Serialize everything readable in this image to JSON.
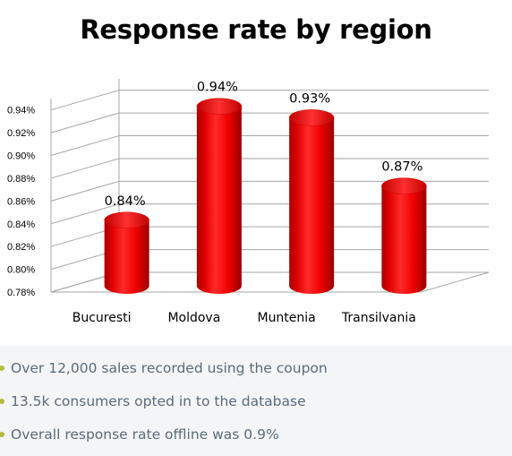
{
  "chart_data": {
    "type": "bar",
    "title": "Response rate by region",
    "categories": [
      "Bucuresti",
      "Moldova",
      "Muntenia",
      "Transilvania"
    ],
    "values": [
      0.84,
      0.94,
      0.93,
      0.87
    ],
    "data_labels": [
      "0.84%",
      "0.94%",
      "0.93%",
      "0.87%"
    ],
    "yticks": [
      "0.78%",
      "0.80%",
      "0.82%",
      "0.84%",
      "0.86%",
      "0.88%",
      "0.90%",
      "0.92%",
      "0.94%"
    ],
    "ylim": [
      0.78,
      0.95
    ],
    "grid": true,
    "style": "3d-cylinder",
    "bar_color": "#ff0000"
  },
  "bullets": [
    "Over 12,000 sales recorded using the coupon",
    "13.5k consumers opted in to the database",
    "Overall response rate offline was 0.9%"
  ]
}
